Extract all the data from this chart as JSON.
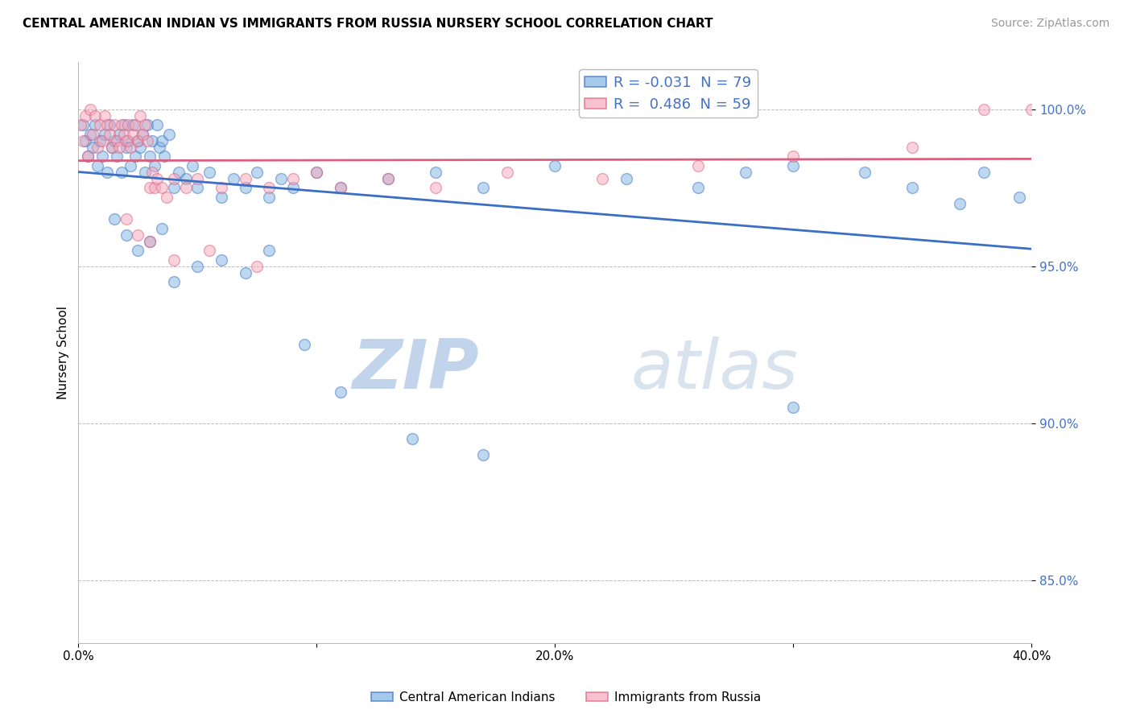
{
  "title": "CENTRAL AMERICAN INDIAN VS IMMIGRANTS FROM RUSSIA NURSERY SCHOOL CORRELATION CHART",
  "source": "Source: ZipAtlas.com",
  "ylabel": "Nursery School",
  "xlim": [
    0.0,
    40.0
  ],
  "ylim": [
    83.0,
    101.5
  ],
  "yticks": [
    85.0,
    90.0,
    95.0,
    100.0
  ],
  "ytick_labels": [
    "85.0%",
    "90.0%",
    "95.0%",
    "100.0%"
  ],
  "xticks": [
    0.0,
    10.0,
    20.0,
    30.0,
    40.0
  ],
  "xtick_labels": [
    "0.0%",
    "",
    "20.0%",
    "",
    "40.0%"
  ],
  "legend1_label": "R = -0.031  N = 79",
  "legend2_label": "R =  0.486  N = 59",
  "blue_color": "#7FB3E0",
  "pink_color": "#F4A7BB",
  "blue_line_color": "#3A6FC4",
  "pink_line_color": "#D95F7F",
  "watermark_zip": "ZIP",
  "watermark_atlas": "atlas",
  "blue_x": [
    0.2,
    0.3,
    0.4,
    0.5,
    0.6,
    0.7,
    0.8,
    0.9,
    1.0,
    1.1,
    1.2,
    1.3,
    1.4,
    1.5,
    1.6,
    1.7,
    1.8,
    1.9,
    2.0,
    2.1,
    2.2,
    2.3,
    2.4,
    2.5,
    2.6,
    2.7,
    2.8,
    2.9,
    3.0,
    3.1,
    3.2,
    3.3,
    3.4,
    3.5,
    3.6,
    3.8,
    4.0,
    4.2,
    4.5,
    4.8,
    5.0,
    5.5,
    6.0,
    6.5,
    7.0,
    7.5,
    8.0,
    8.5,
    9.0,
    10.0,
    11.0,
    13.0,
    15.0,
    17.0,
    20.0,
    23.0,
    26.0,
    28.0,
    30.0,
    33.0,
    35.0,
    37.0,
    38.0,
    39.5,
    1.5,
    2.0,
    2.5,
    3.0,
    3.5,
    4.0,
    5.0,
    6.0,
    7.0,
    8.0,
    9.5,
    11.0,
    14.0,
    17.0,
    30.0
  ],
  "blue_y": [
    99.5,
    99.0,
    98.5,
    99.2,
    98.8,
    99.5,
    98.2,
    99.0,
    98.5,
    99.2,
    98.0,
    99.5,
    98.8,
    99.0,
    98.5,
    99.2,
    98.0,
    99.5,
    98.8,
    99.0,
    98.2,
    99.5,
    98.5,
    99.0,
    98.8,
    99.2,
    98.0,
    99.5,
    98.5,
    99.0,
    98.2,
    99.5,
    98.8,
    99.0,
    98.5,
    99.2,
    97.5,
    98.0,
    97.8,
    98.2,
    97.5,
    98.0,
    97.2,
    97.8,
    97.5,
    98.0,
    97.2,
    97.8,
    97.5,
    98.0,
    97.5,
    97.8,
    98.0,
    97.5,
    98.2,
    97.8,
    97.5,
    98.0,
    98.2,
    98.0,
    97.5,
    97.0,
    98.0,
    97.2,
    96.5,
    96.0,
    95.5,
    95.8,
    96.2,
    94.5,
    95.0,
    95.2,
    94.8,
    95.5,
    92.5,
    91.0,
    89.5,
    89.0,
    90.5
  ],
  "pink_x": [
    0.1,
    0.2,
    0.3,
    0.4,
    0.5,
    0.6,
    0.7,
    0.8,
    0.9,
    1.0,
    1.1,
    1.2,
    1.3,
    1.4,
    1.5,
    1.6,
    1.7,
    1.8,
    1.9,
    2.0,
    2.1,
    2.2,
    2.3,
    2.4,
    2.5,
    2.6,
    2.7,
    2.8,
    2.9,
    3.0,
    3.1,
    3.2,
    3.3,
    3.5,
    3.7,
    4.0,
    4.5,
    5.0,
    6.0,
    7.0,
    8.0,
    9.0,
    10.0,
    11.0,
    13.0,
    15.0,
    18.0,
    22.0,
    26.0,
    30.0,
    35.0,
    38.0,
    2.0,
    2.5,
    3.0,
    4.0,
    5.5,
    7.5,
    40.0
  ],
  "pink_y": [
    99.5,
    99.0,
    99.8,
    98.5,
    100.0,
    99.2,
    99.8,
    98.8,
    99.5,
    99.0,
    99.8,
    99.5,
    99.2,
    98.8,
    99.5,
    99.0,
    98.8,
    99.5,
    99.2,
    99.0,
    99.5,
    98.8,
    99.2,
    99.5,
    99.0,
    99.8,
    99.2,
    99.5,
    99.0,
    97.5,
    98.0,
    97.5,
    97.8,
    97.5,
    97.2,
    97.8,
    97.5,
    97.8,
    97.5,
    97.8,
    97.5,
    97.8,
    98.0,
    97.5,
    97.8,
    97.5,
    98.0,
    97.8,
    98.2,
    98.5,
    98.8,
    100.0,
    96.5,
    96.0,
    95.8,
    95.2,
    95.5,
    95.0,
    100.0
  ]
}
